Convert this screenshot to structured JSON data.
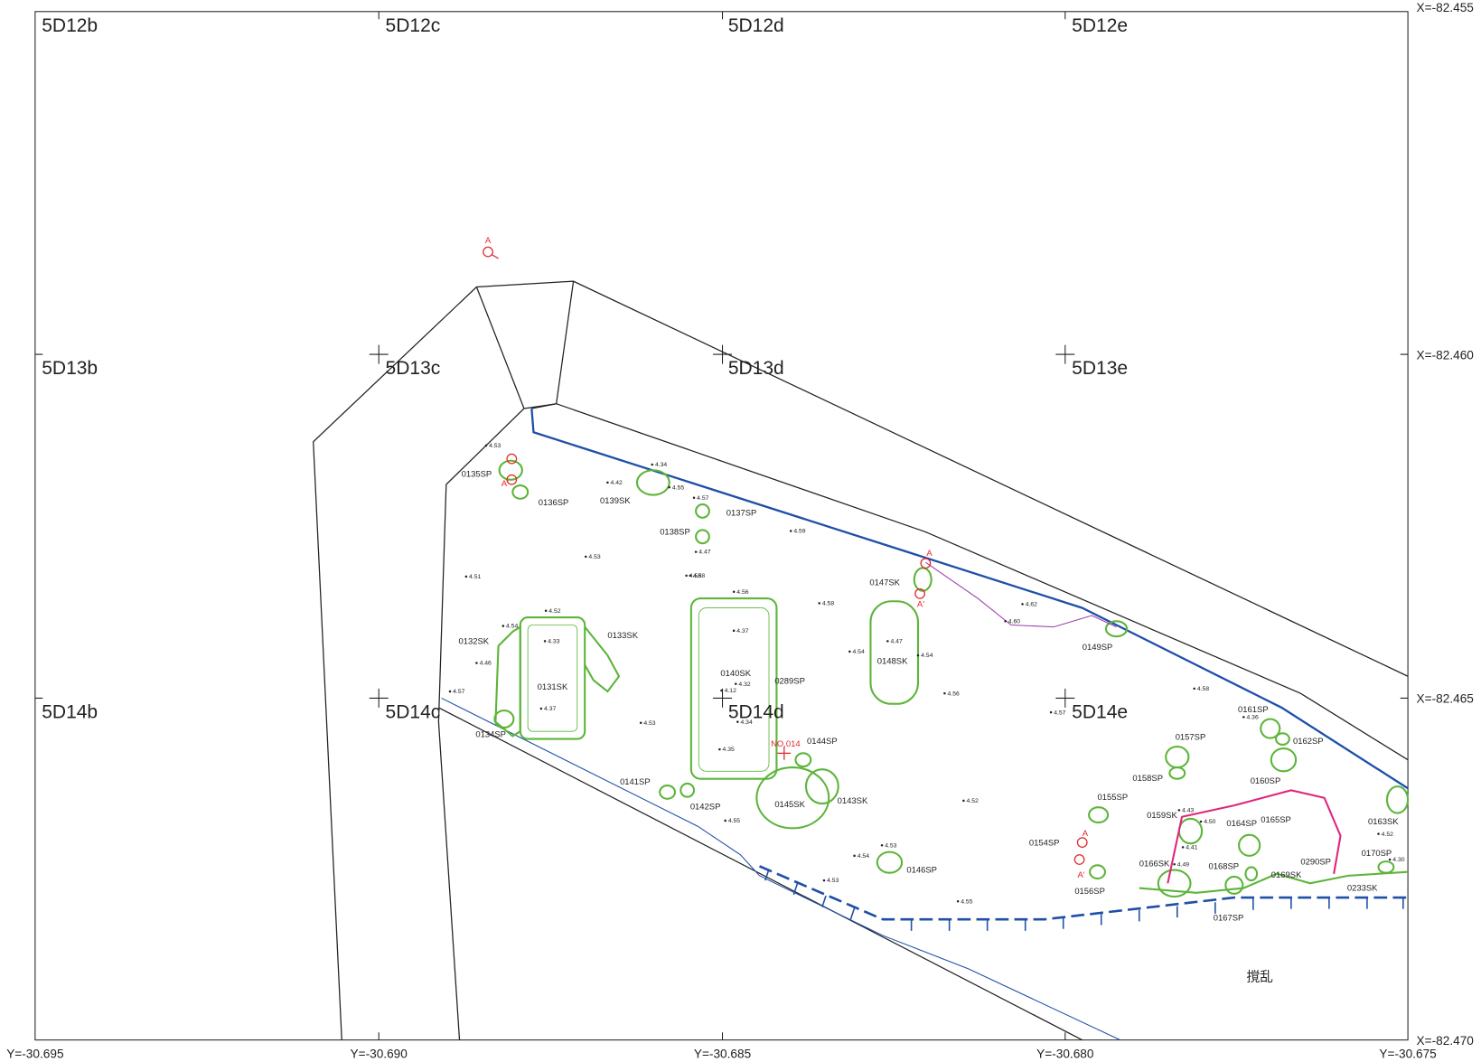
{
  "map": {
    "grid_labels": [
      "5D12b",
      "5D12c",
      "5D12d",
      "5D12e",
      "5D13b",
      "5D13c",
      "5D13d",
      "5D13e",
      "5D14b",
      "5D14c",
      "5D14d",
      "5D14e"
    ],
    "x_coords": [
      "X=-82.455",
      "X=-82.460",
      "X=-82.465",
      "X=-82.470"
    ],
    "y_coords": [
      "Y=-30.695",
      "Y=-30.690",
      "Y=-30.685",
      "Y=-30.680",
      "Y=-30.675"
    ],
    "features": [
      "0135SP",
      "0136SP",
      "0139SK",
      "0137SP",
      "0138SP",
      "0147SK",
      "0148SK",
      "0149SP",
      "0132SK",
      "0133SK",
      "0131SK",
      "0134SP",
      "0140SK",
      "0289SP",
      "0144SP",
      "0145SK",
      "0143SK",
      "0141SP",
      "0142SP",
      "0146SP",
      "0155SP",
      "0157SP",
      "0158SP",
      "0159SK",
      "0154SP",
      "0156SP",
      "0166SK",
      "0161SP",
      "0162SP",
      "0160SP",
      "0164SP",
      "0165SP",
      "0168SP",
      "0167SP",
      "0169SK",
      "0290SP",
      "0170SP",
      "0163SK",
      "0233SK"
    ],
    "elevations": [
      "4.53",
      "4.51",
      "4.58",
      "4.59",
      "4.58",
      "4.62",
      "4.56",
      "4.58",
      "4.57",
      "4.57",
      "4.53",
      "4.55",
      "4.53",
      "4.55",
      "4.52",
      "4.52",
      "4.37",
      "4.33",
      "4.37",
      "4.35",
      "4.47",
      "4.60",
      "4.52",
      "4.56",
      "4.54",
      "4.53",
      "4.34",
      "4.42",
      "4.55",
      "4.57",
      "4.58",
      "4.47",
      "4.54",
      "4.54",
      "4.12",
      "4.32",
      "4.34",
      "4.46",
      "4.53",
      "4.54",
      "4.43",
      "4.50",
      "4.41",
      "4.49",
      "4.36",
      "4.30"
    ],
    "annotations": [
      "NO.014",
      "撹乱",
      "A",
      "A'",
      "A",
      "A'",
      "A",
      "A'"
    ]
  }
}
